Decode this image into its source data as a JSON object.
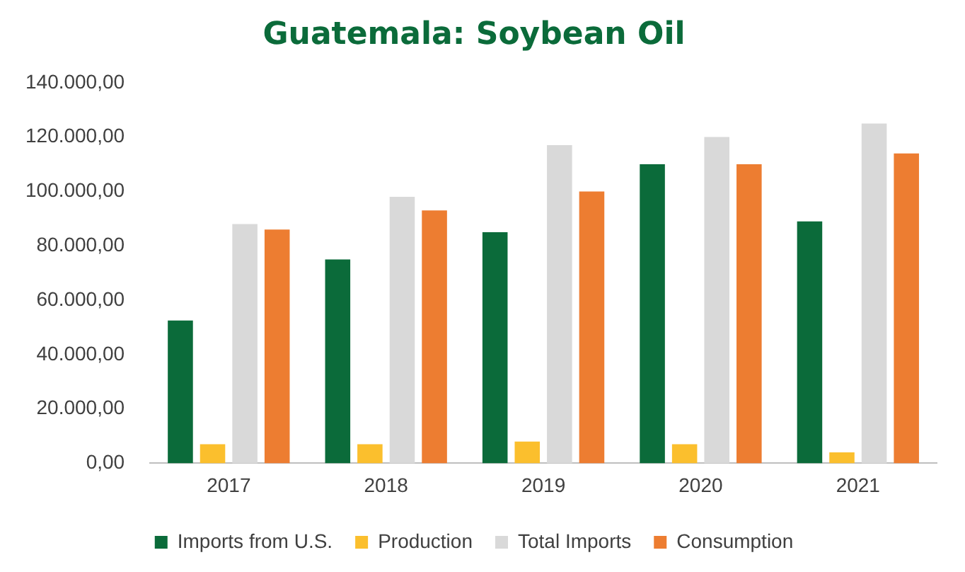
{
  "chart_data": {
    "type": "bar",
    "title": "Guatemala: Soybean Oil",
    "categories": [
      "2017",
      "2018",
      "2019",
      "2020",
      "2021"
    ],
    "series": [
      {
        "name": "Imports from U.S.",
        "color": "#0b6b3a",
        "values": [
          52500,
          75000,
          85000,
          110000,
          89000
        ]
      },
      {
        "name": "Production",
        "color": "#fbbf2d",
        "values": [
          7000,
          7000,
          8000,
          7000,
          4000
        ]
      },
      {
        "name": "Total Imports",
        "color": "#d9d9d9",
        "values": [
          88000,
          98000,
          117000,
          120000,
          125000
        ]
      },
      {
        "name": "Consumption",
        "color": "#ed7d31",
        "values": [
          86000,
          93000,
          100000,
          110000,
          114000
        ]
      }
    ],
    "ylim": [
      0,
      140000
    ],
    "yticks": [
      {
        "value": 0,
        "label": "0,00"
      },
      {
        "value": 20000,
        "label": "20.000,00"
      },
      {
        "value": 40000,
        "label": "40.000,00"
      },
      {
        "value": 60000,
        "label": "60.000,00"
      },
      {
        "value": 80000,
        "label": "80.000,00"
      },
      {
        "value": 100000,
        "label": "100.000,00"
      },
      {
        "value": 120000,
        "label": "120.000,00"
      },
      {
        "value": 140000,
        "label": "140.000,00"
      }
    ],
    "grid": false,
    "legend": "bottom"
  }
}
